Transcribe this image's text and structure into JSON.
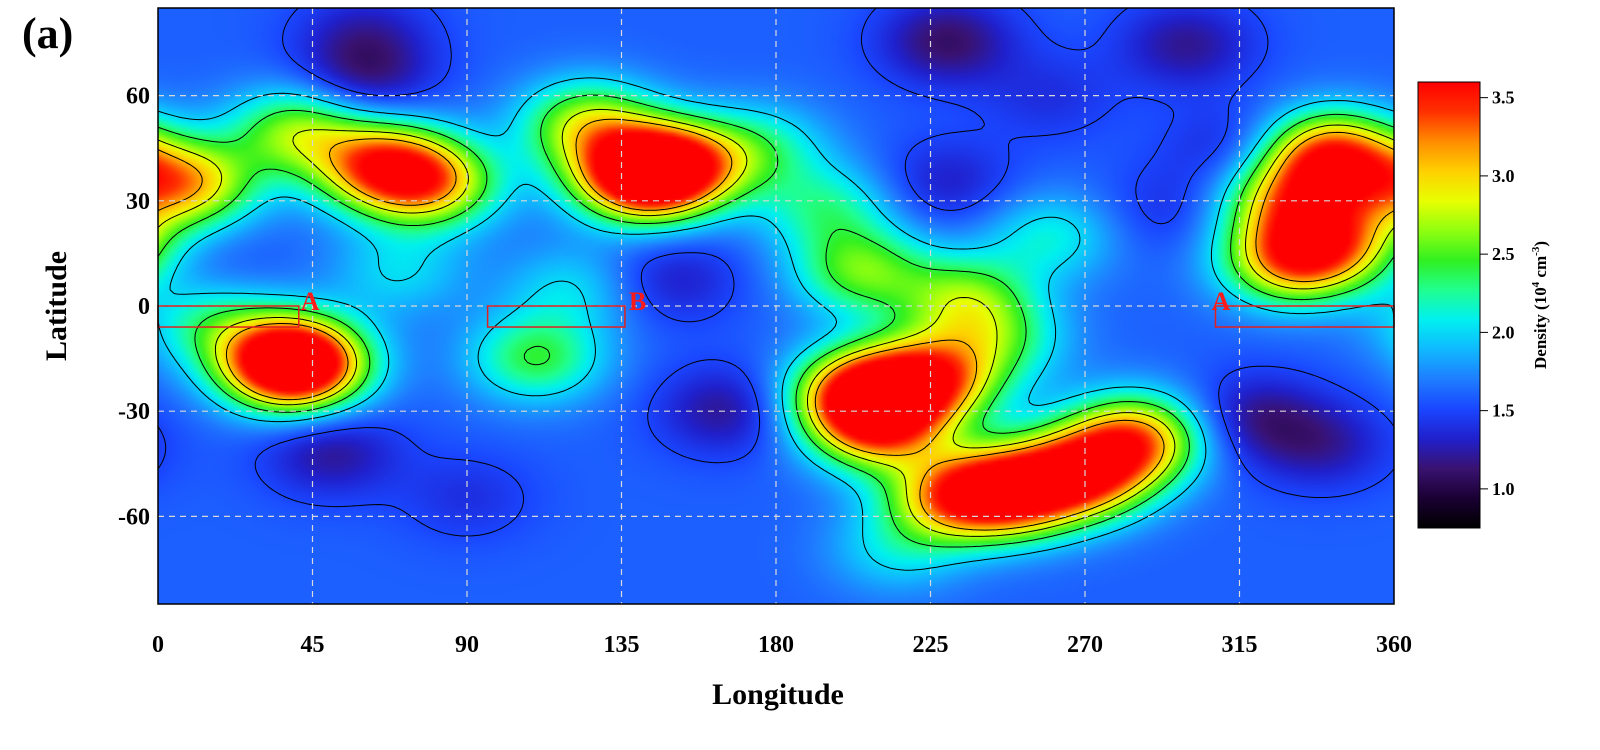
{
  "panel_label": "(a)",
  "colorbar": {
    "title": "Density (10",
    "title_exp": "4",
    "title_tail": " cm",
    "title_exp2": "-3",
    "title_close": ")",
    "colors": [
      "#000000",
      "#1a0033",
      "#3a1270",
      "#2020cc",
      "#1a46ff",
      "#1f7dff",
      "#10b8ff",
      "#00f0f0",
      "#20ff90",
      "#30f020",
      "#90ff10",
      "#e8ff00",
      "#ffd000",
      "#ff8c00",
      "#ff3000",
      "#ff0000"
    ]
  },
  "colors": {
    "grid": "#d8d8d8",
    "contour": "#000000",
    "region_box": "#e02020",
    "map_background": "#2a63ff"
  },
  "chart_data": {
    "type": "heatmap",
    "title": "",
    "xlabel": "Longitude",
    "ylabel": "Latitude",
    "xlim": [
      0,
      360
    ],
    "ylim": [
      -85,
      85
    ],
    "xticks": [
      "0",
      "45",
      "90",
      "135",
      "180",
      "225",
      "270",
      "315",
      "360"
    ],
    "xtick_values": [
      0,
      45,
      90,
      135,
      180,
      225,
      270,
      315,
      360
    ],
    "yticks": [
      "60",
      "30",
      "0",
      "-30",
      "-60"
    ],
    "ytick_values": [
      60,
      30,
      0,
      -30,
      -60
    ],
    "grid": true,
    "colorbar_label": "Density (10^4 cm^-3)",
    "colorbar_range": [
      0.75,
      3.6
    ],
    "colorbar_ticks": [
      "3.5",
      "3.0",
      "2.5",
      "2.0",
      "1.5",
      "1.0"
    ],
    "colorbar_tick_values": [
      3.5,
      3.0,
      2.5,
      2.0,
      1.5,
      1.0
    ],
    "background_density": 1.6,
    "contour_levels": [
      1.5,
      2.0,
      2.4,
      2.8,
      3.1
    ],
    "features": [
      {
        "lon": 8,
        "lat": 35,
        "density": 3.0
      },
      {
        "lon": 40,
        "lat": 50,
        "density": 2.6
      },
      {
        "lon": 65,
        "lat": 40,
        "density": 3.2
      },
      {
        "lon": 80,
        "lat": 35,
        "density": 2.8
      },
      {
        "lon": 125,
        "lat": 52,
        "density": 2.7
      },
      {
        "lon": 140,
        "lat": 37,
        "density": 3.4
      },
      {
        "lon": 150,
        "lat": 40,
        "density": 3.2
      },
      {
        "lon": 38,
        "lat": -16,
        "density": 3.3
      },
      {
        "lon": 40,
        "lat": -17,
        "density": 2.9
      },
      {
        "lon": 205,
        "lat": -25,
        "density": 3.4
      },
      {
        "lon": 225,
        "lat": -21,
        "density": 3.2
      },
      {
        "lon": 210,
        "lat": -35,
        "density": 3.0
      },
      {
        "lon": 250,
        "lat": -53,
        "density": 3.4
      },
      {
        "lon": 270,
        "lat": -48,
        "density": 3.3
      },
      {
        "lon": 285,
        "lat": -38,
        "density": 3.1
      },
      {
        "lon": 232,
        "lat": -55,
        "density": 3.0
      },
      {
        "lon": 342,
        "lat": 43,
        "density": 3.4
      },
      {
        "lon": 330,
        "lat": 30,
        "density": 2.8
      },
      {
        "lon": 330,
        "lat": 13,
        "density": 3.0
      },
      {
        "lon": 345,
        "lat": 18,
        "density": 2.7
      },
      {
        "lon": 205,
        "lat": 10,
        "density": 2.5
      },
      {
        "lon": 235,
        "lat": 2,
        "density": 2.5
      },
      {
        "lon": 195,
        "lat": 28,
        "density": 2.2
      },
      {
        "lon": 175,
        "lat": 45,
        "density": 2.2
      },
      {
        "lon": 110,
        "lat": -15,
        "density": 2.4
      },
      {
        "lon": 245,
        "lat": -10,
        "density": 2.2
      },
      {
        "lon": 260,
        "lat": 20,
        "density": 2.1
      },
      {
        "lon": 15,
        "lat": -5,
        "density": 2.2
      },
      {
        "lon": 70,
        "lat": 10,
        "density": 2.0
      },
      {
        "lon": 120,
        "lat": 5,
        "density": 2.0
      },
      {
        "lon": 215,
        "lat": -70,
        "density": 2.0
      },
      {
        "lon": 60,
        "lat": 78,
        "density": 1.3
      },
      {
        "lon": 60,
        "lat": 65,
        "density": 1.2
      },
      {
        "lon": 50,
        "lat": -42,
        "density": 1.2
      },
      {
        "lon": 165,
        "lat": -30,
        "density": 1.2
      },
      {
        "lon": 150,
        "lat": 8,
        "density": 1.3
      },
      {
        "lon": 230,
        "lat": 76,
        "density": 1.1
      },
      {
        "lon": 300,
        "lat": 75,
        "density": 1.2
      },
      {
        "lon": 320,
        "lat": -32,
        "density": 1.2
      },
      {
        "lon": 340,
        "lat": -40,
        "density": 1.25
      },
      {
        "lon": 230,
        "lat": 35,
        "density": 1.3
      },
      {
        "lon": 315,
        "lat": 45,
        "density": 1.3
      },
      {
        "lon": 15,
        "lat": 10,
        "density": 1.5
      },
      {
        "lon": 295,
        "lat": 28,
        "density": 1.4
      },
      {
        "lon": 260,
        "lat": 60,
        "density": 1.4
      },
      {
        "lon": 90,
        "lat": -55,
        "density": 1.4
      },
      {
        "lon": 90,
        "lat": 50,
        "density": 1.6
      },
      {
        "lon": 275,
        "lat": 0,
        "density": 1.6
      }
    ],
    "regions": [
      {
        "label": "A",
        "lon": [
          0,
          41
        ],
        "lat": [
          -6,
          0
        ]
      },
      {
        "label": "B",
        "lon": [
          96,
          136
        ],
        "lat": [
          -6,
          0
        ]
      },
      {
        "label": "A",
        "lon": [
          308,
          360
        ],
        "lat": [
          -6,
          0
        ]
      }
    ]
  }
}
